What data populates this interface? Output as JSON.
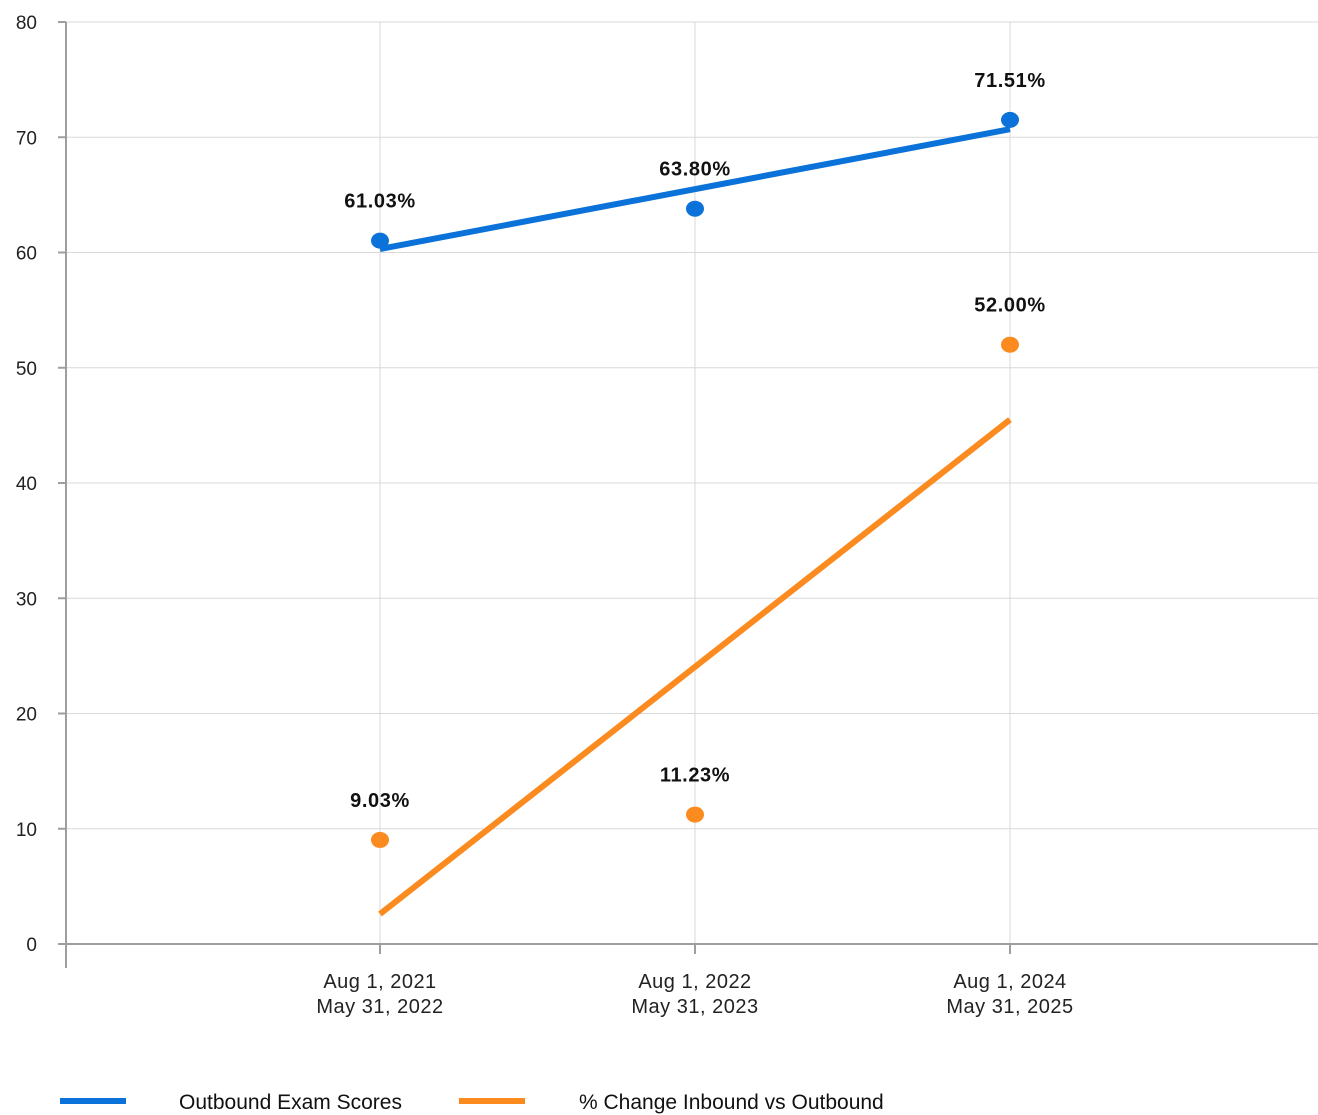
{
  "chart_data": {
    "type": "scatter",
    "categories": [
      [
        "Aug 1, 2021",
        "May 31, 2022"
      ],
      [
        "Aug 1, 2022",
        "May 31, 2023"
      ],
      [
        "Aug 1, 2024",
        "May 31, 2025"
      ]
    ],
    "ylim": [
      0,
      80
    ],
    "yticks": [
      0,
      10,
      20,
      30,
      40,
      50,
      60,
      70,
      80
    ],
    "grid": true,
    "legend_position": "bottom-left",
    "series": [
      {
        "name": "Outbound Exam Scores",
        "color": "#0a72d8",
        "values": [
          61.03,
          63.8,
          71.51
        ],
        "labels": [
          "61.03%",
          "63.80%",
          "71.51%"
        ],
        "trendline": [
          60.3,
          65.5,
          70.7
        ]
      },
      {
        "name": "% Change Inbound vs Outbound",
        "color": "#fb8a1f",
        "values": [
          9.03,
          11.23,
          52.0
        ],
        "labels": [
          "9.03%",
          "11.23%",
          "52.00%"
        ],
        "trendline": [
          2.6,
          24.1,
          45.5
        ]
      }
    ]
  }
}
